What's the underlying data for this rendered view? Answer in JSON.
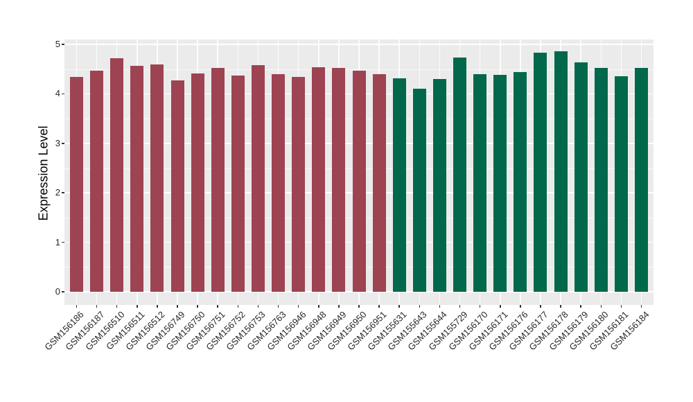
{
  "chart_data": {
    "type": "bar",
    "title": "",
    "xlabel": "",
    "ylabel": "Expression Level",
    "ylim": [
      0,
      5.1
    ],
    "yticks": [
      0,
      1,
      2,
      3,
      4,
      5
    ],
    "grid": true,
    "legend_position": "none",
    "panel_background": "#EBEBEB",
    "gridline_color": "#FFFFFF",
    "group_colors": {
      "maroon": "#9D4352",
      "green": "#01684B"
    },
    "categories": [
      "GSM156186",
      "GSM156187",
      "GSM156510",
      "GSM156511",
      "GSM156512",
      "GSM156749",
      "GSM156750",
      "GSM156751",
      "GSM156752",
      "GSM156753",
      "GSM156763",
      "GSM156946",
      "GSM156948",
      "GSM156949",
      "GSM156950",
      "GSM156951",
      "GSM155631",
      "GSM155643",
      "GSM155644",
      "GSM155729",
      "GSM156170",
      "GSM156171",
      "GSM156176",
      "GSM156177",
      "GSM156178",
      "GSM156179",
      "GSM156180",
      "GSM156181",
      "GSM156184"
    ],
    "values": [
      4.34,
      4.47,
      4.72,
      4.57,
      4.59,
      4.27,
      4.41,
      4.53,
      4.37,
      4.58,
      4.4,
      4.34,
      4.54,
      4.52,
      4.47,
      4.4,
      4.32,
      4.11,
      4.3,
      4.74,
      4.4,
      4.38,
      4.44,
      4.83,
      4.86,
      4.64,
      4.52,
      4.36,
      4.52
    ],
    "bar_groups": [
      "maroon",
      "maroon",
      "maroon",
      "maroon",
      "maroon",
      "maroon",
      "maroon",
      "maroon",
      "maroon",
      "maroon",
      "maroon",
      "maroon",
      "maroon",
      "maroon",
      "maroon",
      "maroon",
      "green",
      "green",
      "green",
      "green",
      "green",
      "green",
      "green",
      "green",
      "green",
      "green",
      "green",
      "green",
      "green"
    ]
  }
}
